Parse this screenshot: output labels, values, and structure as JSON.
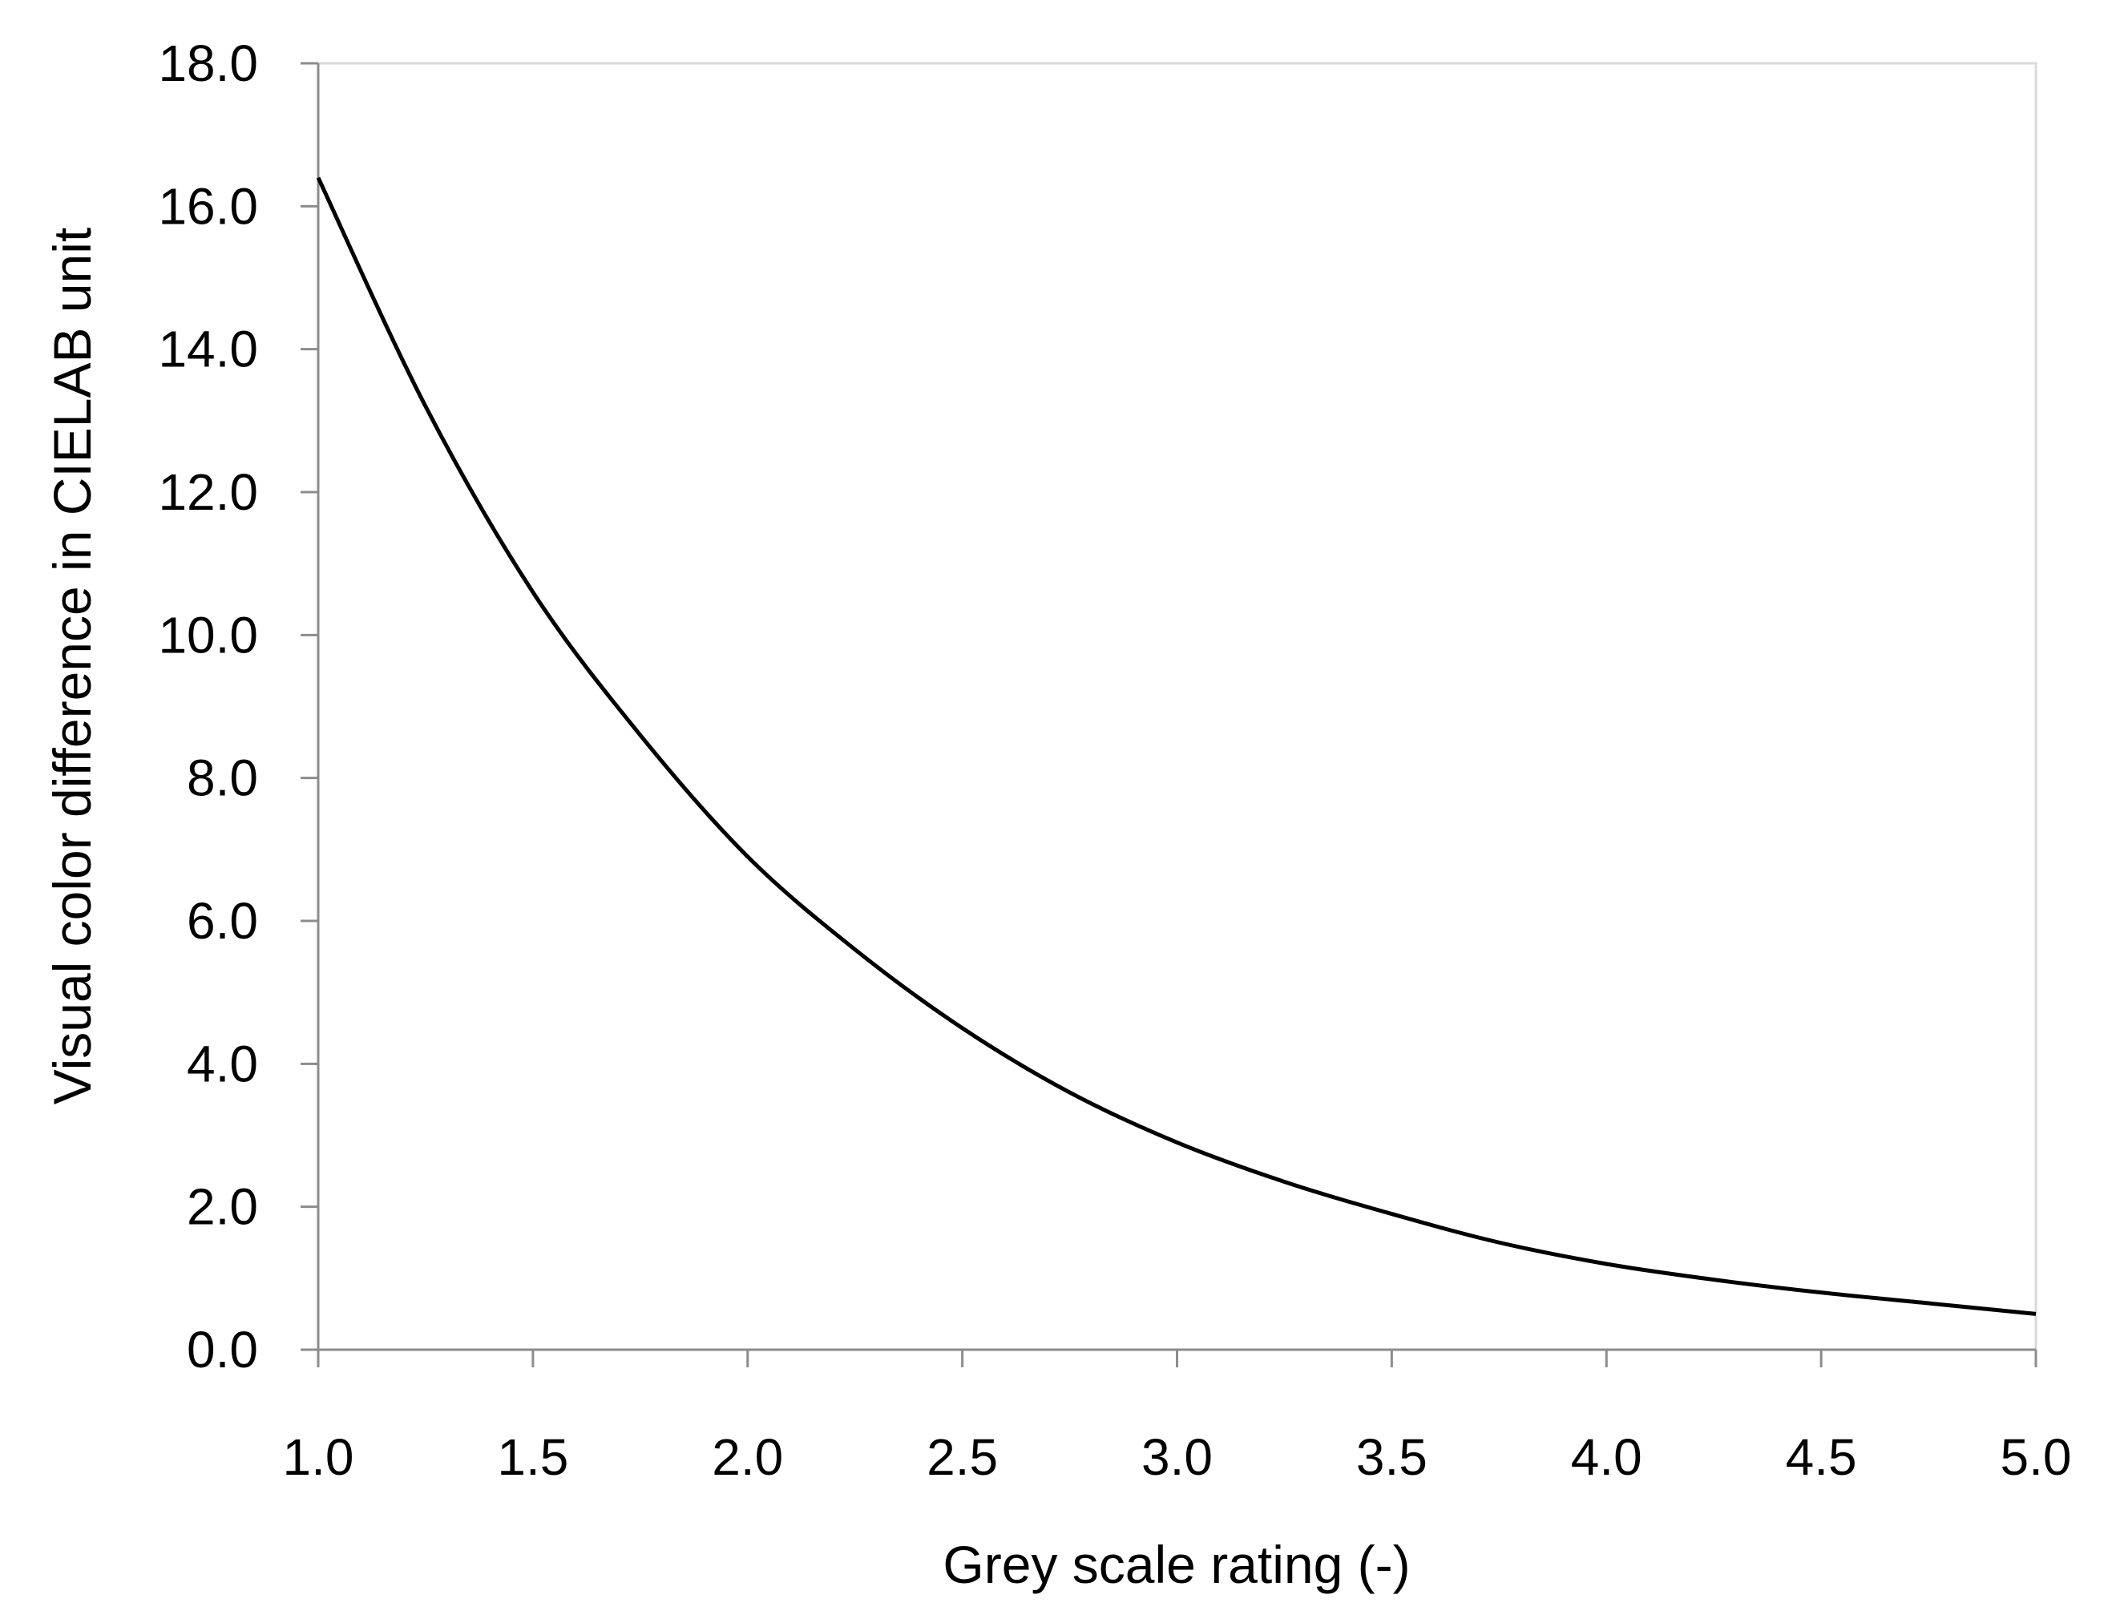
{
  "chart_data": {
    "type": "line",
    "title": "",
    "xlabel": "Grey scale rating (-)",
    "ylabel": "Visual color difference in CIELAB unit",
    "xlim": [
      1.0,
      5.0
    ],
    "ylim": [
      0.0,
      18.0
    ],
    "x_ticks": [
      "1.0",
      "1.5",
      "2.0",
      "2.5",
      "3.0",
      "3.5",
      "4.0",
      "4.5",
      "5.0"
    ],
    "y_ticks": [
      "0.0",
      "2.0",
      "4.0",
      "6.0",
      "8.0",
      "10.0",
      "12.0",
      "14.0",
      "16.0",
      "18.0"
    ],
    "grid": false,
    "legend": "none",
    "line_color": "#000000",
    "series": [
      {
        "x": [
          1.0,
          1.25,
          1.5,
          1.75,
          2.0,
          2.25,
          2.5,
          2.75,
          3.0,
          3.25,
          3.5,
          3.75,
          4.0,
          4.25,
          4.5,
          4.75,
          5.0
        ],
        "values": [
          16.4,
          13.2,
          10.6,
          8.6,
          6.9,
          5.6,
          4.5,
          3.6,
          2.9,
          2.35,
          1.9,
          1.5,
          1.2,
          0.98,
          0.8,
          0.65,
          0.5
        ]
      }
    ]
  }
}
